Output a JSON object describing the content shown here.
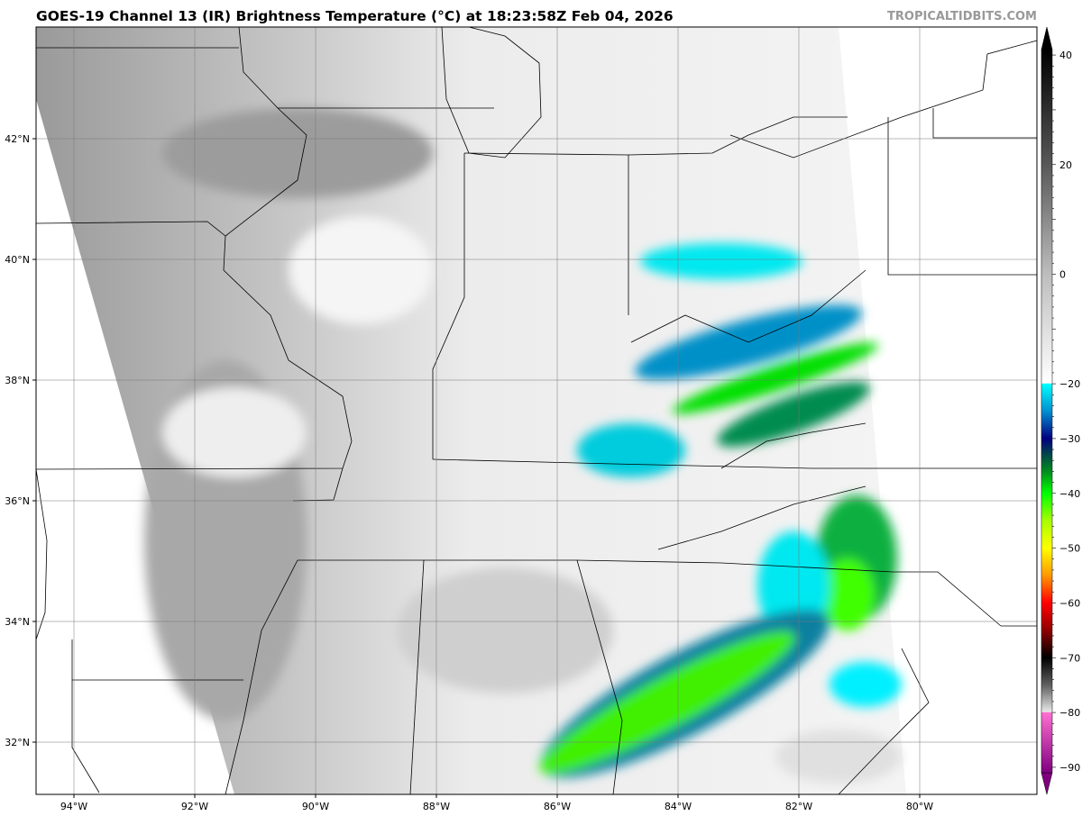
{
  "header": {
    "title": "GOES-19 Channel 13 (IR) Brightness Temperature (°C) at 18:23:58Z Feb 04, 2026",
    "brand": "TROPICALTIDBITS.COM"
  },
  "map": {
    "lon_range": [
      -94.6,
      -78.0
    ],
    "lat_range": [
      31.1,
      43.8
    ],
    "lon_ticks": [
      {
        "v": -94,
        "label": "94°W"
      },
      {
        "v": -92,
        "label": "92°W"
      },
      {
        "v": -90,
        "label": "90°W"
      },
      {
        "v": -88,
        "label": "88°W"
      },
      {
        "v": -86,
        "label": "86°W"
      },
      {
        "v": -84,
        "label": "84°W"
      },
      {
        "v": -82,
        "label": "82°W"
      },
      {
        "v": -80,
        "label": "80°W"
      }
    ],
    "lat_ticks": [
      {
        "v": 42,
        "label": "42°N"
      },
      {
        "v": 40,
        "label": "40°N"
      },
      {
        "v": 38,
        "label": "38°N"
      },
      {
        "v": 36,
        "label": "36°N"
      },
      {
        "v": 34,
        "label": "34°N"
      },
      {
        "v": 32,
        "label": "32°N"
      }
    ],
    "background_color": "#d6d6d6",
    "grid": true
  },
  "colorbar": {
    "range": [
      -95,
      45
    ],
    "ticks": [
      {
        "v": 40,
        "label": "40"
      },
      {
        "v": 20,
        "label": "20"
      },
      {
        "v": 0,
        "label": "0"
      },
      {
        "v": -20,
        "label": "−20"
      },
      {
        "v": -30,
        "label": "−30"
      },
      {
        "v": -40,
        "label": "−40"
      },
      {
        "v": -50,
        "label": "−50"
      },
      {
        "v": -60,
        "label": "−60"
      },
      {
        "v": -70,
        "label": "−70"
      },
      {
        "v": -80,
        "label": "−80"
      },
      {
        "v": -90,
        "label": "−90"
      }
    ],
    "stops": [
      {
        "v": 45,
        "c": "#000000"
      },
      {
        "v": 20,
        "c": "#585858"
      },
      {
        "v": 0,
        "c": "#bdbdbd"
      },
      {
        "v": -19.9,
        "c": "#ffffff"
      },
      {
        "v": -20,
        "c": "#00ffff"
      },
      {
        "v": -25,
        "c": "#0090d0"
      },
      {
        "v": -30,
        "c": "#000080"
      },
      {
        "v": -33,
        "c": "#004848"
      },
      {
        "v": -36,
        "c": "#008c20"
      },
      {
        "v": -40,
        "c": "#00ff00"
      },
      {
        "v": -45,
        "c": "#a8ff00"
      },
      {
        "v": -50,
        "c": "#ffff00"
      },
      {
        "v": -55,
        "c": "#ff9800"
      },
      {
        "v": -60,
        "c": "#ff0000"
      },
      {
        "v": -65,
        "c": "#900000"
      },
      {
        "v": -70,
        "c": "#000000"
      },
      {
        "v": -75,
        "c": "#606060"
      },
      {
        "v": -79.9,
        "c": "#e8e8e8"
      },
      {
        "v": -80,
        "c": "#ff70d0"
      },
      {
        "v": -95,
        "c": "#800080"
      }
    ]
  }
}
